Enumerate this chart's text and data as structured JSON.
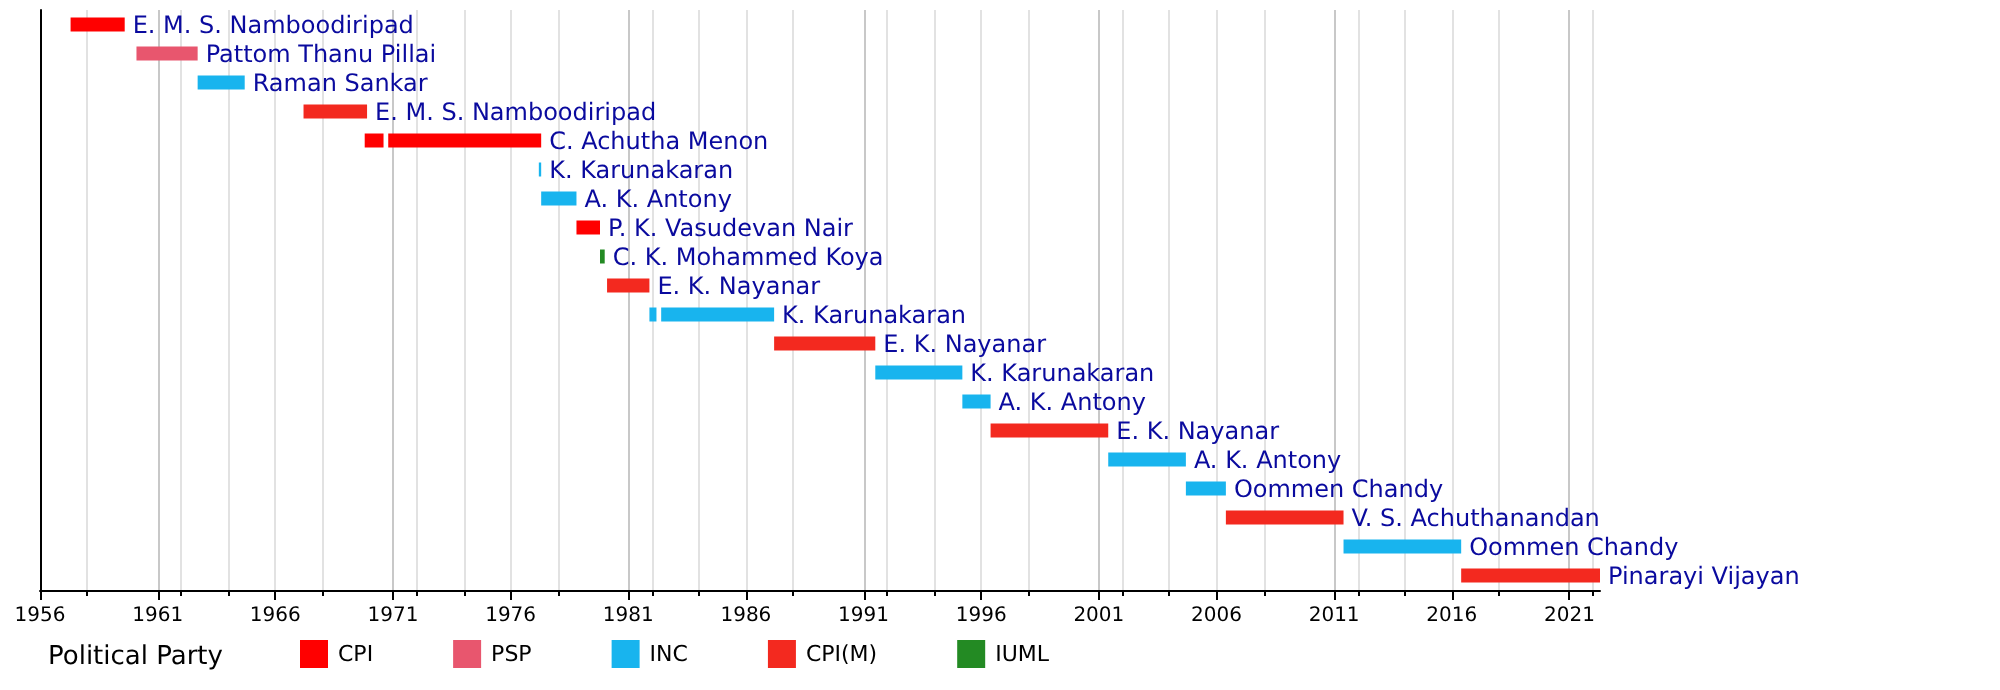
{
  "chart_data": {
    "type": "bar",
    "orientation": "horizontal",
    "legend_title": "Political Party",
    "legend": "bottom",
    "grid": "x",
    "categories": [
      null,
      null,
      null,
      null,
      null,
      null,
      null,
      null,
      null,
      null,
      null,
      null,
      null,
      null,
      null,
      null,
      null,
      null,
      null,
      null
    ],
    "xlim": [
      1956,
      2022.3
    ],
    "xticks": [
      1956,
      1961,
      1966,
      1971,
      1976,
      1981,
      1986,
      1991,
      1996,
      2001,
      2006,
      2011,
      2016,
      2021
    ],
    "series": [
      {
        "name": "CPI",
        "color": "#ff0000",
        "base": [
          1957.3,
          null,
          null,
          null,
          1969.8,
          null,
          null,
          1978.8,
          null,
          null,
          null,
          null,
          null,
          null,
          null,
          null,
          null,
          null,
          null,
          null
        ],
        "values": [
          2.3,
          null,
          null,
          null,
          0.8,
          null,
          null,
          1.0,
          null,
          null,
          null,
          null,
          null,
          null,
          null,
          null,
          null,
          null,
          null,
          null
        ],
        "value_labels": [
          "E. M. S. Namboodiripad",
          null,
          null,
          null,
          null,
          null,
          null,
          "P. K. Vasudevan Nair",
          null,
          null,
          null,
          null,
          null,
          null,
          null,
          null,
          null,
          null,
          null,
          null
        ]
      },
      {
        "name": "PSP",
        "color": "#e8566e",
        "base": [
          null,
          1960.1,
          null,
          null,
          null,
          null,
          null,
          null,
          null,
          null,
          null,
          null,
          null,
          null,
          null,
          null,
          null,
          null,
          null,
          null
        ],
        "values": [
          null,
          2.6,
          null,
          null,
          null,
          null,
          null,
          null,
          null,
          null,
          null,
          null,
          null,
          null,
          null,
          null,
          null,
          null,
          null,
          null
        ],
        "value_labels": [
          null,
          "Pattom Thanu Pillai",
          null,
          null,
          null,
          null,
          null,
          null,
          null,
          null,
          null,
          null,
          null,
          null,
          null,
          null,
          null,
          null,
          null,
          null
        ]
      },
      {
        "name": "INC",
        "color": "#18b4ee",
        "base": [
          null,
          null,
          1962.7,
          null,
          null,
          1977.2,
          1977.3,
          null,
          null,
          null,
          1981.9,
          null,
          1991.5,
          1995.2,
          null,
          2001.4,
          2004.7,
          null,
          2011.4,
          null
        ],
        "values": [
          null,
          null,
          2.0,
          null,
          null,
          0.1,
          1.5,
          null,
          null,
          null,
          0.3,
          null,
          3.7,
          1.2,
          null,
          3.3,
          1.7,
          null,
          5.0,
          null
        ],
        "value_labels": [
          null,
          null,
          "Raman Sankar",
          null,
          null,
          "K. Karunakaran",
          "A. K. Antony",
          null,
          null,
          null,
          null,
          null,
          "K. Karunakaran",
          "A. K. Antony",
          null,
          "A. K. Antony",
          "Oommen Chandy",
          null,
          "Oommen Chandy",
          null
        ]
      },
      {
        "name": "CPI(M)",
        "color": "#f3291f",
        "base": [
          null,
          null,
          null,
          1967.2,
          null,
          null,
          null,
          null,
          null,
          1980.1,
          null,
          1987.2,
          null,
          null,
          1996.4,
          null,
          null,
          2006.4,
          null,
          2016.4
        ],
        "values": [
          null,
          null,
          null,
          2.7,
          null,
          null,
          null,
          null,
          null,
          1.8,
          null,
          4.3,
          null,
          null,
          5.0,
          null,
          null,
          5.0,
          null,
          5.9
        ],
        "value_labels": [
          null,
          null,
          null,
          "E. M. S. Namboodiripad",
          null,
          null,
          null,
          null,
          null,
          "E. K. Nayanar",
          null,
          "E. K. Nayanar",
          null,
          null,
          "E. K. Nayanar",
          null,
          null,
          "V. S. Achuthanandan",
          null,
          "Pinarayi Vijayan"
        ]
      },
      {
        "name": "IUML",
        "color": "#238a23",
        "base": [
          null,
          null,
          null,
          null,
          null,
          null,
          null,
          null,
          1979.8,
          null,
          null,
          null,
          null,
          null,
          null,
          null,
          null,
          null,
          null,
          null
        ],
        "values": [
          null,
          null,
          null,
          null,
          null,
          null,
          null,
          null,
          0.2,
          null,
          null,
          null,
          null,
          null,
          null,
          null,
          null,
          null,
          null,
          null
        ],
        "value_labels": [
          null,
          null,
          null,
          null,
          null,
          null,
          null,
          null,
          "C. K. Mohammed Koya",
          null,
          null,
          null,
          null,
          null,
          null,
          null,
          null,
          null,
          null,
          null
        ]
      },
      {
        "color": "#ff0000",
        "base": [
          null,
          null,
          null,
          null,
          1970.8,
          null,
          null,
          null,
          null,
          null,
          null,
          null,
          null,
          null,
          null,
          null,
          null,
          null,
          null,
          null
        ],
        "values": [
          null,
          null,
          null,
          null,
          6.5,
          null,
          null,
          null,
          null,
          null,
          null,
          null,
          null,
          null,
          null,
          null,
          null,
          null,
          null,
          null
        ],
        "value_labels": [
          null,
          null,
          null,
          null,
          "C. Achutha Menon",
          null,
          null,
          null,
          null,
          null,
          null,
          null,
          null,
          null,
          null,
          null,
          null,
          null,
          null,
          null
        ]
      },
      {
        "color": "#18b4ee",
        "base": [
          null,
          null,
          null,
          null,
          null,
          null,
          null,
          null,
          null,
          null,
          1982.4,
          null,
          null,
          null,
          null,
          null,
          null,
          null,
          null,
          null
        ],
        "values": [
          null,
          null,
          null,
          null,
          null,
          null,
          null,
          null,
          null,
          null,
          4.8,
          null,
          null,
          null,
          null,
          null,
          null,
          null,
          null,
          null
        ],
        "value_labels": [
          null,
          null,
          null,
          null,
          null,
          null,
          null,
          null,
          null,
          null,
          "K. Karunakaran",
          null,
          null,
          null,
          null,
          null,
          null,
          null,
          null,
          null
        ]
      }
    ]
  }
}
